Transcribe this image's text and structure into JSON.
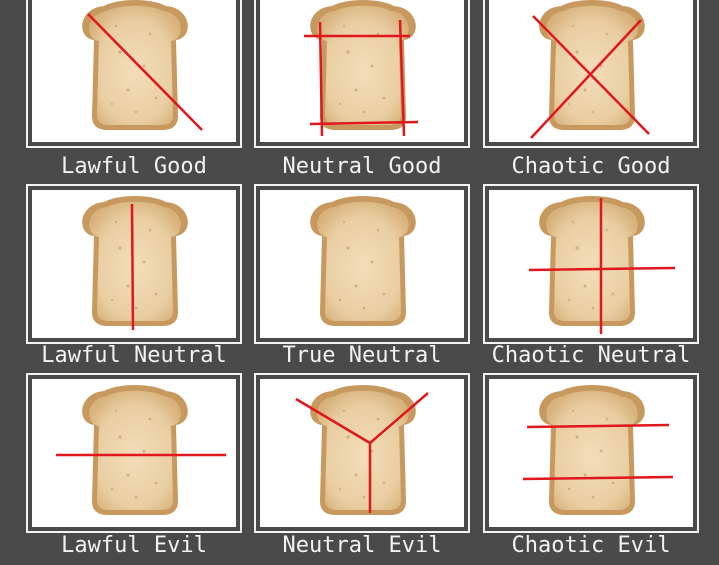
{
  "grid": {
    "cells": [
      {
        "label": "Lawful Good",
        "cut": "diagonal-slash"
      },
      {
        "label": "Neutral Good",
        "cut": "square-crust-trim"
      },
      {
        "label": "Chaotic Good",
        "cut": "x-cross"
      },
      {
        "label": "Lawful Neutral",
        "cut": "vertical-half"
      },
      {
        "label": "True Neutral",
        "cut": "none"
      },
      {
        "label": "Chaotic Neutral",
        "cut": "off-center-cross"
      },
      {
        "label": "Lawful Evil",
        "cut": "horizontal-half"
      },
      {
        "label": "Neutral Evil",
        "cut": "y-split"
      },
      {
        "label": "Chaotic Evil",
        "cut": "two-horizontal-strips"
      }
    ]
  },
  "colors": {
    "background": "#4a4a4a",
    "frame": "#f4f4f4",
    "cut_line": "#e0171d",
    "bread_crust": "#c8995e",
    "bread_crumb": "#ecd3ab"
  }
}
